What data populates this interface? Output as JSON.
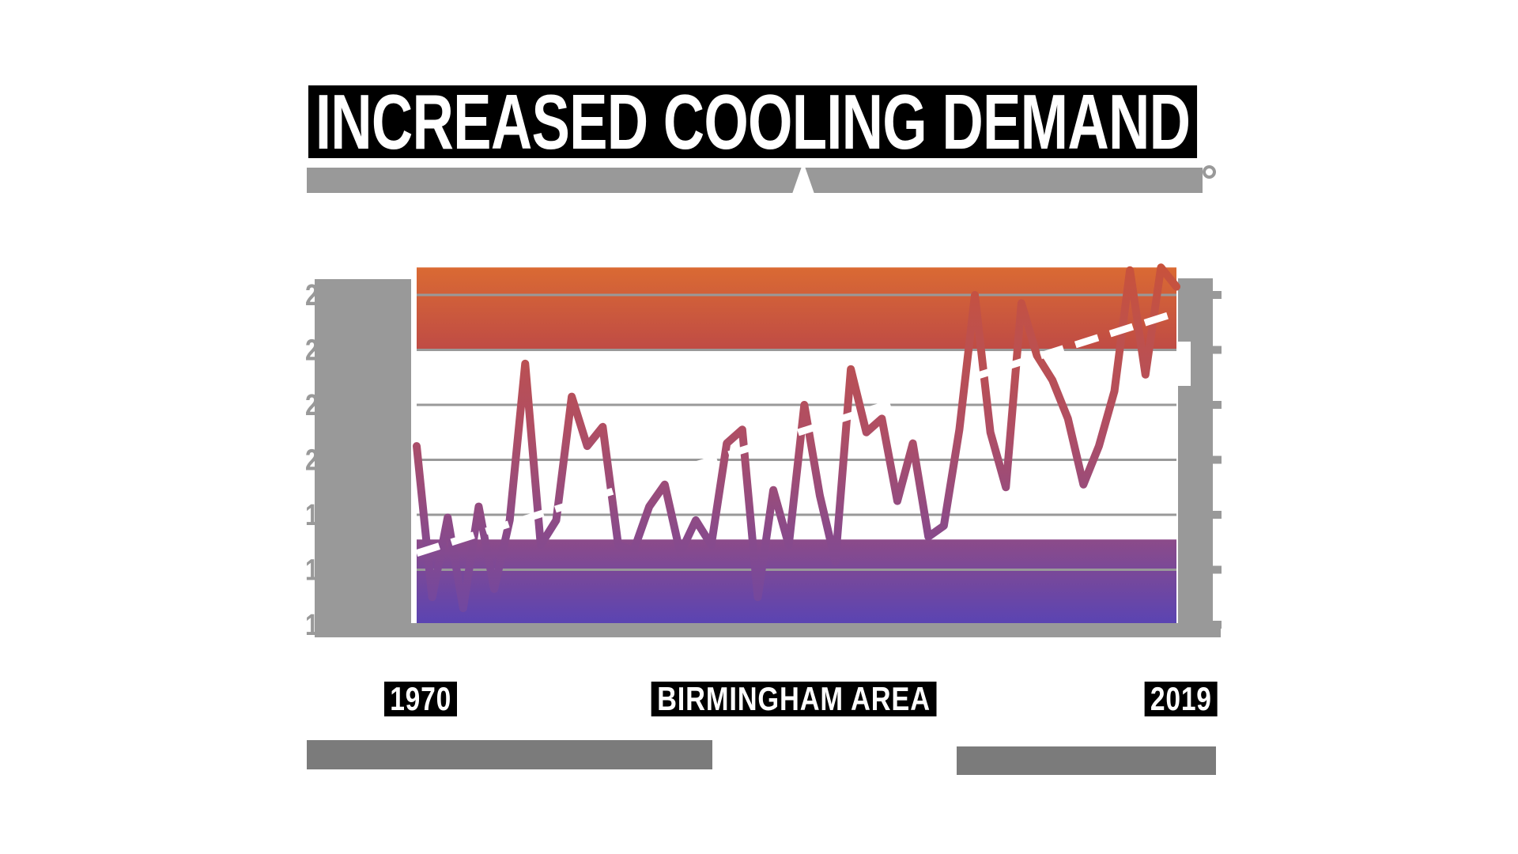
{
  "header": {
    "title": "INCREASED COOLING DEMAND",
    "title_text_color": "#ffffff",
    "title_highlight_color": "#000000",
    "subtitle": {
      "redacted": true,
      "bar_color": "#999999",
      "visible_letter": "A",
      "trailing_symbol": "°"
    }
  },
  "footer": {
    "redacted": true,
    "bar_color": "#7B7B7B",
    "bars": 2
  },
  "chart_data": {
    "type": "line",
    "title": "INCREASED COOLING DEMAND",
    "x_label_left": "1970",
    "x_label_center": "BIRMINGHAM AREA",
    "x_label_right": "2019",
    "x_start_year": 1970,
    "x_end_year": 2019,
    "series": [
      {
        "name": "annual-value",
        "values": [
          2050,
          1500,
          1790,
          1460,
          1830,
          1530,
          1780,
          2350,
          1690,
          1780,
          2230,
          2050,
          2120,
          1690,
          1670,
          1830,
          1910,
          1660,
          1780,
          1690,
          2060,
          2110,
          1500,
          1890,
          1690,
          2200,
          1870,
          1630,
          2330,
          2100,
          2150,
          1850,
          2060,
          1720,
          1760,
          2110,
          2600,
          2100,
          1900,
          2570,
          2380,
          2290,
          2150,
          1910,
          2050,
          2250,
          2690,
          2310,
          2700,
          2630
        ]
      }
    ],
    "values_note": "y-axis labels are redacted by gray blocks; values estimated from pixel positions",
    "trendline": {
      "style": "white-dashed",
      "start_value": 1660,
      "end_value": 2535,
      "color": "#ffffff"
    },
    "y_axis": {
      "labels_redacted": true,
      "tick_fragments": [
        "2",
        "2",
        "2",
        "2",
        "1",
        "1",
        "1"
      ],
      "tick_values_estimated": [
        2600,
        2400,
        2200,
        2000,
        1800,
        1600,
        1400
      ],
      "tick_color": "#999999"
    },
    "ylim": [
      1400,
      2700
    ],
    "grid": true,
    "gridline_color": "#999999",
    "bands": {
      "top": {
        "from_value": 2400,
        "to_value": 2700,
        "color_top": "#DA6A33",
        "color_bottom": "#BF4B45"
      },
      "bottom": {
        "from_value": 1400,
        "to_value": 1710,
        "color_top": "#8C4B89",
        "color_bottom": "#5A44B3"
      }
    },
    "line_gradient": [
      "#C8523C",
      "#B04E63",
      "#8F4B85",
      "#6C47A5"
    ],
    "redaction_block_color": "#999999",
    "legend": null
  }
}
